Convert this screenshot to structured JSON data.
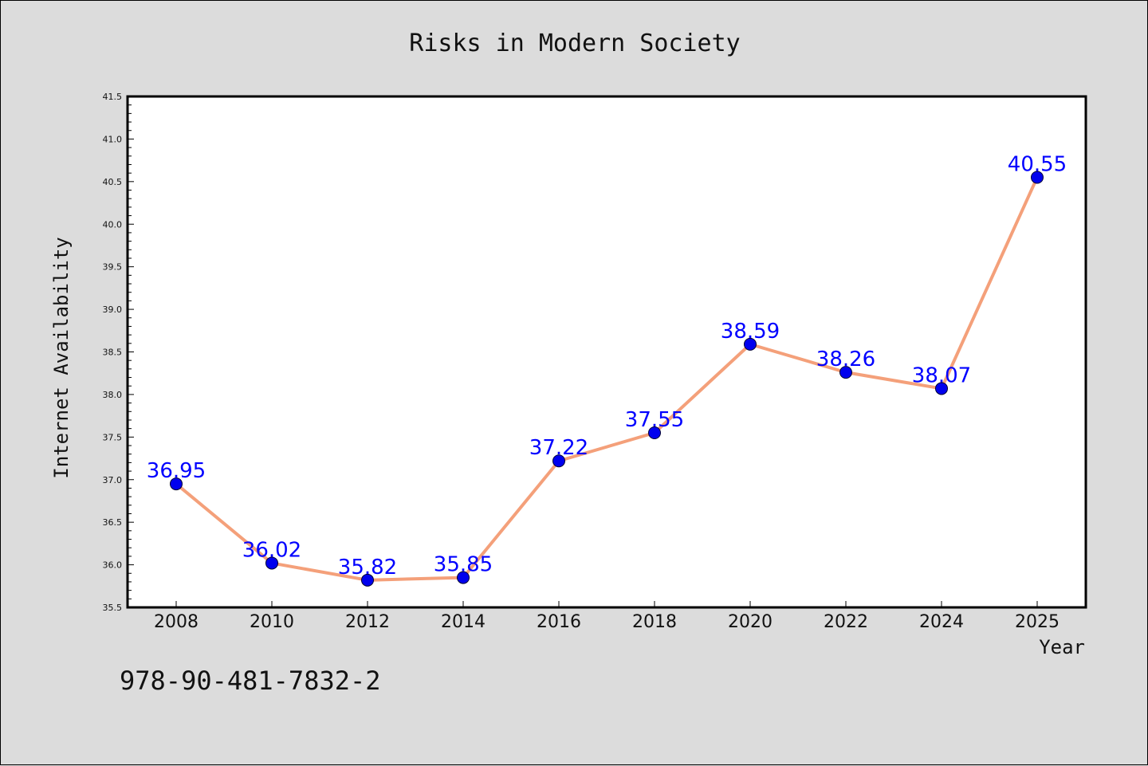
{
  "chart_data": {
    "type": "line",
    "title": "Risks in Modern Society",
    "xlabel": "Year",
    "ylabel": "Internet Availability",
    "categories": [
      "2008",
      "2010",
      "2012",
      "2014",
      "2016",
      "2018",
      "2020",
      "2022",
      "2024",
      "2025"
    ],
    "series": [
      {
        "values": [
          36.95,
          36.02,
          35.82,
          35.85,
          37.22,
          37.55,
          38.59,
          38.26,
          38.07,
          40.55
        ],
        "labels": [
          "36.95",
          "36.02",
          "35.82",
          "35.85",
          "37.22",
          "37.55",
          "38.59",
          "38.26",
          "38.07",
          "40.55"
        ],
        "line_color": "#f4a07a",
        "marker_color": "#0000ee",
        "label_color": "#0000ff"
      }
    ],
    "ylim": [
      35.5,
      41.5
    ],
    "yticks": [
      "35.5",
      "36.0",
      "36.5",
      "37.0",
      "37.5",
      "38.0",
      "38.5",
      "39.0",
      "39.5",
      "40.0",
      "40.5",
      "41.0",
      "41.5"
    ],
    "grid": false,
    "legend": "none"
  },
  "footer": {
    "isbn": "978-90-481-7832-2"
  },
  "colors": {
    "background": "#dcdcdc",
    "plot_background": "#ffffff"
  }
}
